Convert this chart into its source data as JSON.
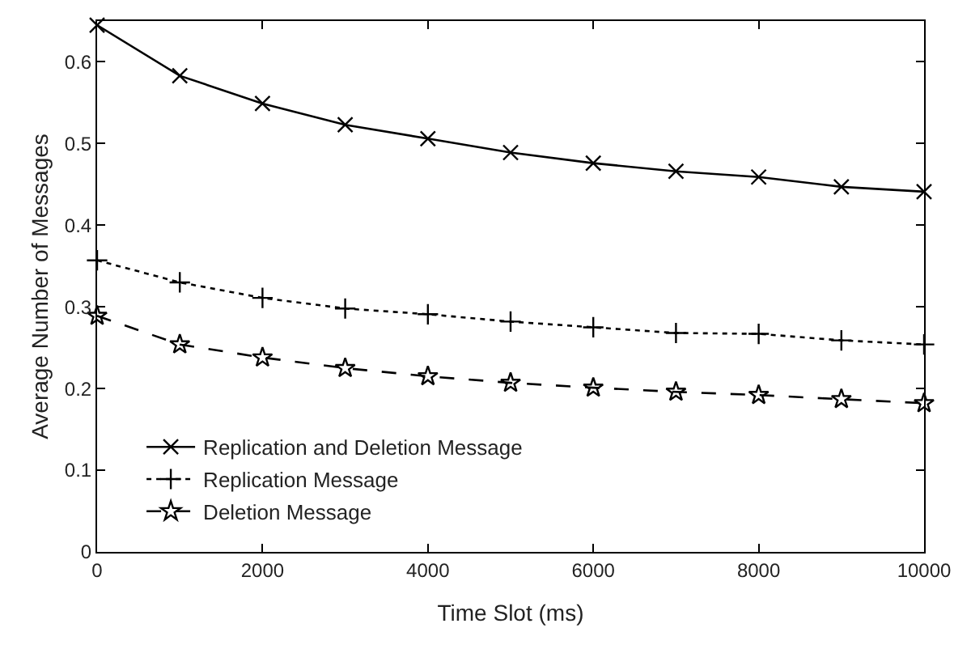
{
  "chart_data": {
    "type": "line",
    "xlabel": "Time Slot (ms)",
    "ylabel": "Average Number of Messages",
    "x": [
      0,
      1000,
      2000,
      3000,
      4000,
      5000,
      6000,
      7000,
      8000,
      9000,
      10000
    ],
    "xlim": [
      0,
      10000
    ],
    "xticks": [
      0,
      2000,
      4000,
      6000,
      8000,
      10000
    ],
    "ylim": [
      0,
      0.65
    ],
    "yticks": [
      0,
      0.1,
      0.2,
      0.3,
      0.4,
      0.5,
      0.6
    ],
    "legend": "bottom left",
    "series": [
      {
        "name": "Replication and Deletion Message",
        "color": "#000000",
        "marker": "cross",
        "line_style": "solid",
        "values": [
          0.645,
          0.583,
          0.549,
          0.523,
          0.506,
          0.489,
          0.476,
          0.466,
          0.459,
          0.447,
          0.441
        ]
      },
      {
        "name": "Replication Message",
        "color": "#000000",
        "marker": "plus",
        "line_style": "dotted",
        "values": [
          0.357,
          0.33,
          0.311,
          0.298,
          0.291,
          0.282,
          0.275,
          0.268,
          0.267,
          0.259,
          0.254
        ]
      },
      {
        "name": "Deletion Message",
        "color": "#000000",
        "marker": "star",
        "line_style": "dashed",
        "values": [
          0.289,
          0.254,
          0.238,
          0.225,
          0.215,
          0.207,
          0.201,
          0.196,
          0.192,
          0.187,
          0.182
        ]
      }
    ]
  }
}
